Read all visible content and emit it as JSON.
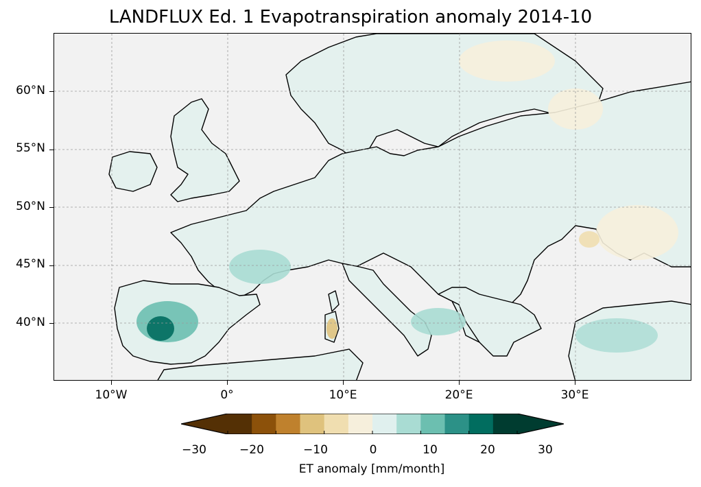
{
  "title": "LANDFLUX Ed. 1 Evapotranspiration anomaly 2014-10",
  "map": {
    "lat_labels": [
      "60°N",
      "55°N",
      "50°N",
      "45°N",
      "40°N"
    ],
    "lon_labels": [
      "10°W",
      "0°",
      "10°E",
      "20°E",
      "30°E"
    ],
    "extent": {
      "lon": [
        -15,
        40
      ],
      "lat": [
        35,
        65
      ]
    },
    "ocean_color": "#f2f2f2",
    "gridlines": true
  },
  "colorbar": {
    "label": "ET anomaly [mm/month]",
    "tick_labels": [
      "−30",
      "−20",
      "−10",
      "0",
      "10",
      "20",
      "30"
    ],
    "levels": [
      -30,
      -25,
      -20,
      -15,
      -10,
      -5,
      0,
      5,
      10,
      15,
      20,
      25,
      30
    ],
    "colors": [
      "#543005",
      "#8c510a",
      "#bf812d",
      "#dfc27d",
      "#f0deb0",
      "#f6efdc",
      "#e0f0ee",
      "#a9dcd3",
      "#6cbfb0",
      "#2c9187",
      "#016d5f",
      "#003c30"
    ],
    "extend": "both"
  }
}
